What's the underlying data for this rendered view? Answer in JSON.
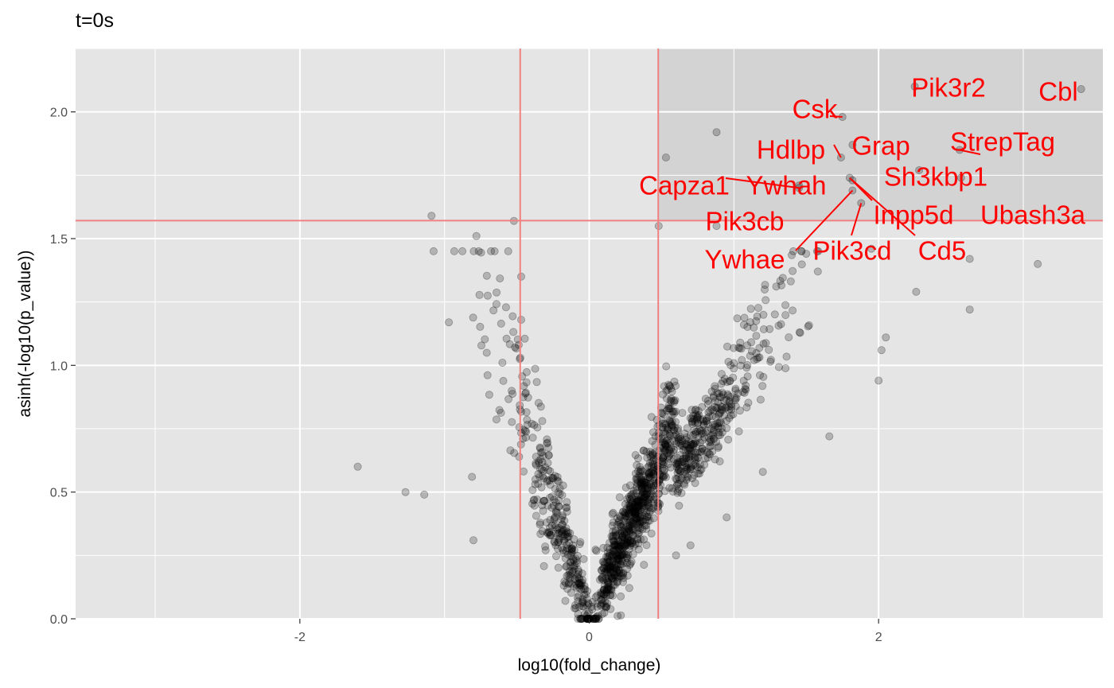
{
  "chart_data": {
    "type": "scatter",
    "title": "t=0s",
    "xlabel": "log10(fold_change)",
    "ylabel": "asinh(-log10(p_value))",
    "xlim": [
      -3.55,
      3.55
    ],
    "ylim": [
      0,
      2.25
    ],
    "x_ticks": [
      {
        "value": -2,
        "label": "-2"
      },
      {
        "value": 0,
        "label": "0"
      },
      {
        "value": 2,
        "label": "2"
      }
    ],
    "y_ticks": [
      {
        "value": 0.0,
        "label": "0.0"
      },
      {
        "value": 0.5,
        "label": "0.5"
      },
      {
        "value": 1.0,
        "label": "1.0"
      },
      {
        "value": 1.5,
        "label": "1.5"
      },
      {
        "value": 2.0,
        "label": "2.0"
      }
    ],
    "thresholds": {
      "fold_change": [
        -0.477,
        0.477
      ],
      "p_value": 1.571
    },
    "grid": true,
    "colors": {
      "panel": "#e5e5e5",
      "significant_region": "#d3d3d3",
      "grid": "#ffffff",
      "points": "#000000",
      "threshold_lines": "#f08080",
      "labels": "#ff0000"
    },
    "highlighted": [
      {
        "label": "Cbl",
        "x": 3.4,
        "y": 2.09
      },
      {
        "label": "Pik3r2",
        "x": 2.25,
        "y": 2.1
      },
      {
        "label": "Csk",
        "x": 1.75,
        "y": 1.98
      },
      {
        "label": "Grap",
        "x": 1.82,
        "y": 1.87
      },
      {
        "label": "Hdlbp",
        "x": 1.74,
        "y": 1.82
      },
      {
        "label": "StrepTag",
        "x": 2.56,
        "y": 1.85
      },
      {
        "label": "Sh3kbp1",
        "x": 2.28,
        "y": 1.77
      },
      {
        "label": "Capza1",
        "x": 1.45,
        "y": 1.7
      },
      {
        "label": "Ywhah",
        "x": 1.45,
        "y": 1.71
      },
      {
        "label": "Inpp5d",
        "x": 1.8,
        "y": 1.74
      },
      {
        "label": "Ubash3a",
        "x": 2.57,
        "y": 1.74
      },
      {
        "label": "Pik3cb",
        "x": 0.88,
        "y": 1.55
      },
      {
        "label": "Pik3cd",
        "x": 1.88,
        "y": 1.64
      },
      {
        "label": "Cd5",
        "x": 1.82,
        "y": 1.73
      },
      {
        "label": "Ywhae",
        "x": 1.82,
        "y": 1.69
      }
    ],
    "points_notable": [
      [
        -1.6,
        0.6
      ],
      [
        -1.27,
        0.5
      ],
      [
        -1.14,
        0.49
      ],
      [
        -1.09,
        1.59
      ],
      [
        -0.97,
        1.17
      ],
      [
        -0.78,
        1.51
      ],
      [
        -0.81,
        0.56
      ],
      [
        -0.8,
        0.31
      ],
      [
        -0.56,
        1.45
      ],
      [
        -0.52,
        1.57
      ],
      [
        -0.47,
        1.35
      ],
      [
        -0.47,
        1.18
      ],
      [
        0.48,
        1.55
      ],
      [
        0.53,
        1.82
      ],
      [
        0.88,
        1.92
      ],
      [
        1.58,
        1.37
      ],
      [
        1.66,
        0.72
      ],
      [
        2.0,
        0.94
      ],
      [
        2.02,
        1.06
      ],
      [
        2.05,
        1.11
      ],
      [
        2.26,
        1.29
      ],
      [
        2.63,
        1.42
      ],
      [
        2.63,
        1.22
      ],
      [
        3.1,
        1.4
      ],
      [
        1.95,
        1.46
      ],
      [
        1.5,
        1.44
      ],
      [
        1.2,
        0.58
      ],
      [
        0.95,
        0.4
      ],
      [
        0.7,
        0.29
      ],
      [
        0.6,
        0.25
      ]
    ],
    "cloud_seed": 20240607,
    "cloud_count": 1450
  }
}
